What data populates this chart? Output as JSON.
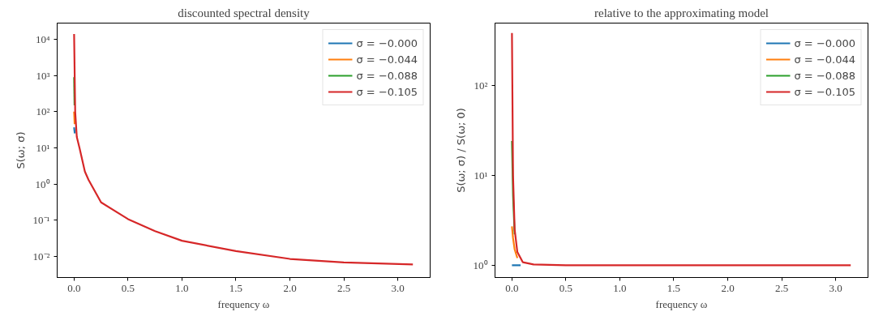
{
  "chart_data": [
    {
      "type": "line",
      "title": "discounted spectral density",
      "xlabel": "frequency ω",
      "ylabel": "S(ω; σ)",
      "log": "y",
      "grid": false,
      "legend": "top right",
      "x": [
        0,
        0.01,
        0.025,
        0.05,
        0.1,
        0.134,
        0.25,
        0.5,
        0.75,
        1.0,
        1.5,
        2.0,
        2.5,
        3.14
      ],
      "xlim": [
        -0.157,
        3.3
      ],
      "xticks": [
        {
          "value": 0,
          "label": "0.0"
        },
        0.5,
        {
          "value": 1,
          "label": "1.0"
        },
        1.5,
        {
          "value": 2,
          "label": "2.0"
        },
        2.5,
        {
          "value": 3,
          "label": "3.0"
        }
      ],
      "ylim": [
        0.0026,
        28000
      ],
      "yticks": [
        {
          "value": 0.01,
          "label": "10⁻²"
        },
        {
          "value": 0.1,
          "label": "10⁻¹"
        },
        {
          "value": 1,
          "label": "10⁰"
        },
        {
          "value": 10,
          "label": "10¹"
        },
        {
          "value": 100,
          "label": "10²"
        },
        {
          "value": 1000,
          "label": "10³"
        },
        {
          "value": 10000,
          "label": "10⁴"
        }
      ],
      "series": [
        {
          "name": "σ = −0.000",
          "color": "#1f77b4",
          "x": [
            0,
            0.006
          ],
          "values": [
            37,
            25
          ]
        },
        {
          "name": "σ = −0.044",
          "color": "#ff7f0e",
          "x": [
            0,
            0.005
          ],
          "values": [
            100,
            45
          ]
        },
        {
          "name": "σ = −0.088",
          "color": "#2ca02c",
          "x": [
            0,
            0.004
          ],
          "values": [
            900,
            150
          ]
        },
        {
          "name": "σ = −0.105",
          "color": "#d62728",
          "values": [
            14000,
            100,
            20,
            10,
            2.2,
            1.3,
            0.31,
            0.107,
            0.05,
            0.027,
            0.014,
            0.0085,
            0.0068,
            0.006
          ]
        }
      ]
    },
    {
      "type": "line",
      "title": "relative to the approximating model",
      "xlabel": "frequency ω",
      "ylabel": "S(ω; σ) / S(ω; 0)",
      "log": "y",
      "grid": false,
      "legend": "top right",
      "x": [
        0,
        0.01,
        0.025,
        0.05,
        0.1,
        0.2,
        0.5,
        1.0,
        2.0,
        3.14
      ],
      "xlim": [
        -0.157,
        3.3
      ],
      "xticks": [
        {
          "value": 0,
          "label": "0.0"
        },
        0.5,
        {
          "value": 1,
          "label": "1.0"
        },
        1.5,
        {
          "value": 2,
          "label": "2.0"
        },
        2.5,
        {
          "value": 3,
          "label": "3.0"
        }
      ],
      "ylim": [
        0.73,
        490
      ],
      "yticks": [
        {
          "value": 1,
          "label": "10⁰"
        },
        {
          "value": 10,
          "label": "10¹"
        },
        {
          "value": 100,
          "label": "10²"
        }
      ],
      "series": [
        {
          "name": "σ = −0.000",
          "color": "#1f77b4",
          "x": [
            0,
            0.08
          ],
          "values": [
            1,
            1
          ]
        },
        {
          "name": "σ = −0.044",
          "color": "#ff7f0e",
          "x": [
            0,
            0.01,
            0.025,
            0.05
          ],
          "values": [
            2.7,
            2.0,
            1.5,
            1.2
          ]
        },
        {
          "name": "σ = −0.088",
          "color": "#2ca02c",
          "x": [
            0,
            0.01,
            0.025
          ],
          "values": [
            24,
            6,
            2.2
          ]
        },
        {
          "name": "σ = −0.105",
          "color": "#d62728",
          "values": [
            380,
            10,
            2.5,
            1.4,
            1.08,
            1.02,
            1,
            1,
            1,
            1
          ]
        }
      ]
    }
  ]
}
